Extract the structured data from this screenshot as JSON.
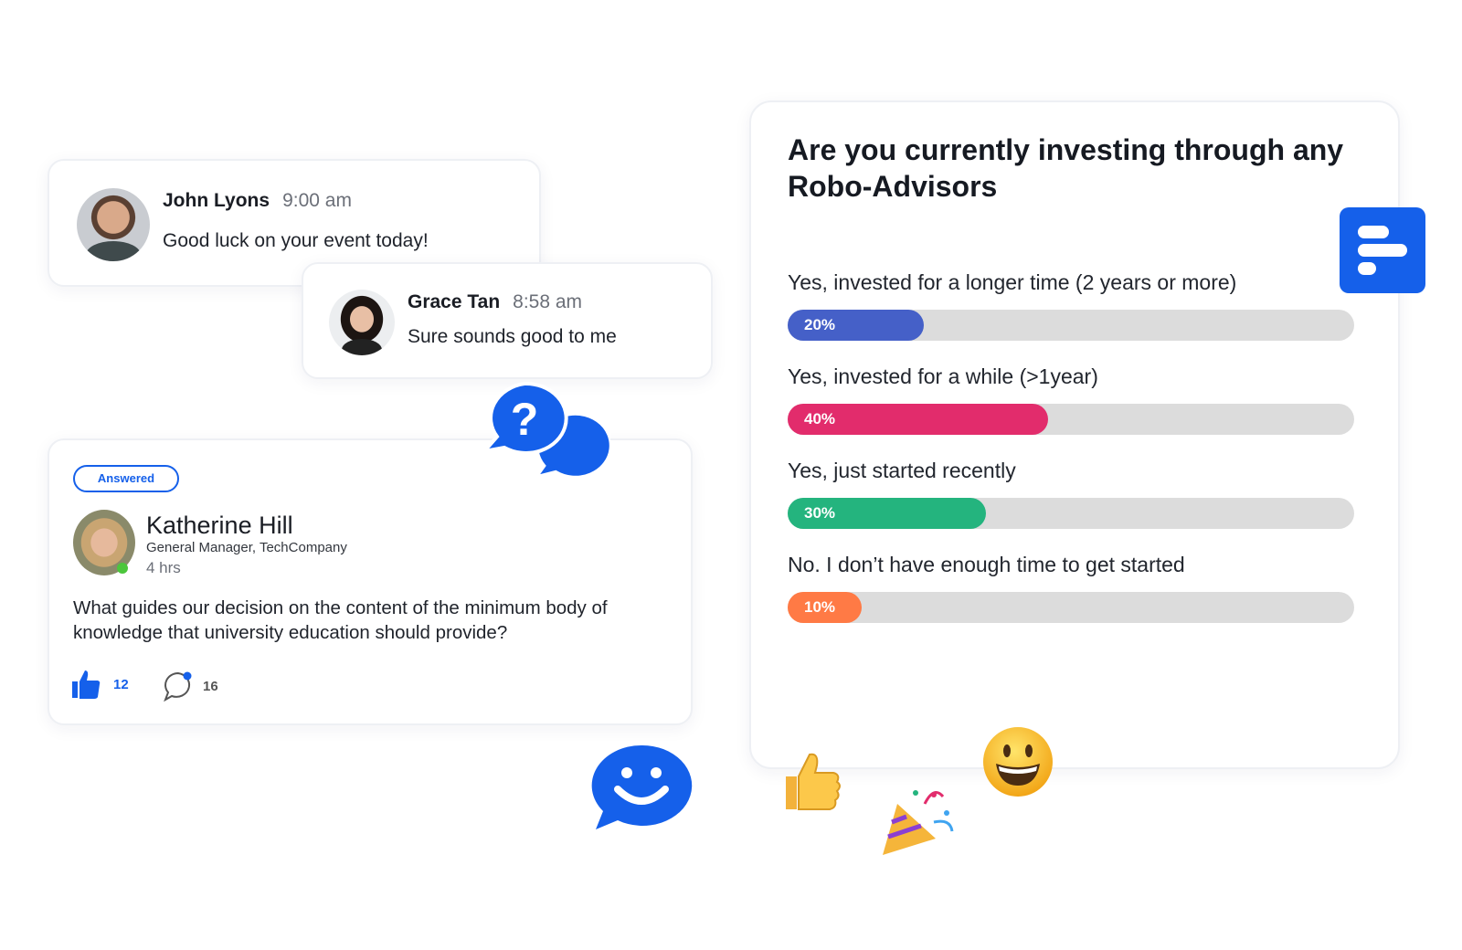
{
  "chat_messages": [
    {
      "name": "John Lyons",
      "time": "9:00 am",
      "text": "Good luck on your event today!"
    },
    {
      "name": "Grace Tan",
      "time": "8:58 am",
      "text": "Sure sounds good to me"
    }
  ],
  "question_card": {
    "status_badge": "Answered",
    "author_name": "Katherine Hill",
    "author_title": "General Manager, TechCompany",
    "posted": "4 hrs",
    "question": "What guides our decision on the content of the minimum body of knowledge that university education should provide?",
    "likes": "12",
    "comments": "16",
    "online_color": "#4cc63c"
  },
  "poll": {
    "title": "Are you currently investing through any Robo-Advisors",
    "options": [
      {
        "label": "Yes, invested for a longer time (2 years or more)",
        "percent": 20,
        "percent_label": "20%",
        "color": "#4560c8"
      },
      {
        "label": "Yes, invested for a while (>1year)",
        "percent": 40,
        "percent_label": "40%",
        "color": "#e22c6c"
      },
      {
        "label": "Yes, just started recently",
        "percent": 30,
        "percent_label": "30%",
        "color": "#24b47e"
      },
      {
        "label": "No. I don’t have enough time to get started",
        "percent": 10,
        "percent_label": "10%",
        "color": "#ff7a45"
      }
    ]
  },
  "colors": {
    "brand_blue": "#1560ea",
    "track": "#dcdcdc"
  },
  "icons": [
    "poll-icon",
    "question-chat-icon",
    "smiley-chat-icon",
    "thumbs-up-emoji",
    "party-popper-emoji",
    "grinning-face-emoji",
    "thumbs-up-icon",
    "comment-icon"
  ]
}
